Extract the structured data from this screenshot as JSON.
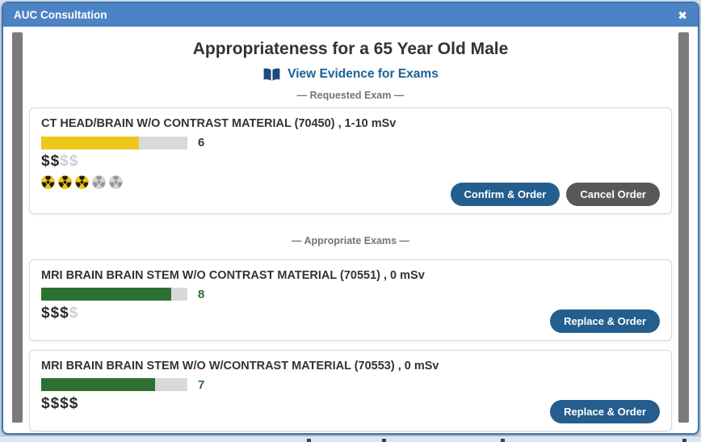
{
  "window": {
    "title": "AUC Consultation",
    "close_icon": "✖"
  },
  "page": {
    "title": "Appropriateness for a 65 Year Old Male",
    "evidence_link": "View Evidence for Exams",
    "requested_label": "— Requested Exam —",
    "appropriate_label": "— Appropriate Exams —"
  },
  "colors": {
    "titlebar": "#4c83c4",
    "modal_border": "#3d74b0",
    "link": "#1b6095",
    "confirm_button": "#235e8e",
    "cancel_button": "#58585a",
    "bar_track": "#d9d9d9",
    "requested_bar_fill": "#eec71b",
    "appropriate_bar_fill": "#2d7030"
  },
  "exams": {
    "requested": {
      "name": "CT HEAD/BRAIN W/O CONTRAST MATERIAL (70450) , 1-10 mSv",
      "score": 6,
      "score_max": 9,
      "bar_color": "#eec71b",
      "score_color": "#3a3a3a",
      "cost_active": 2,
      "cost_total": 4,
      "radiation_active": 3,
      "radiation_total": 5,
      "confirm_label": "Confirm & Order",
      "cancel_label": "Cancel Order"
    },
    "appropriate": [
      {
        "name": "MRI BRAIN BRAIN STEM W/O CONTRAST MATERIAL (70551) , 0 mSv",
        "score": 8,
        "score_max": 9,
        "bar_color": "#2d7030",
        "score_color": "#2d7030",
        "cost_active": 3,
        "cost_total": 4,
        "radiation_active": 0,
        "radiation_total": 0,
        "replace_label": "Replace & Order"
      },
      {
        "name": "MRI BRAIN BRAIN STEM W/O W/CONTRAST MATERIAL (70553) , 0 mSv",
        "score": 7,
        "score_max": 9,
        "bar_color": "#2d7030",
        "score_color": "#2d7030",
        "cost_active": 4,
        "cost_total": 4,
        "radiation_active": 0,
        "radiation_total": 0,
        "replace_label": "Replace & Order"
      }
    ]
  }
}
